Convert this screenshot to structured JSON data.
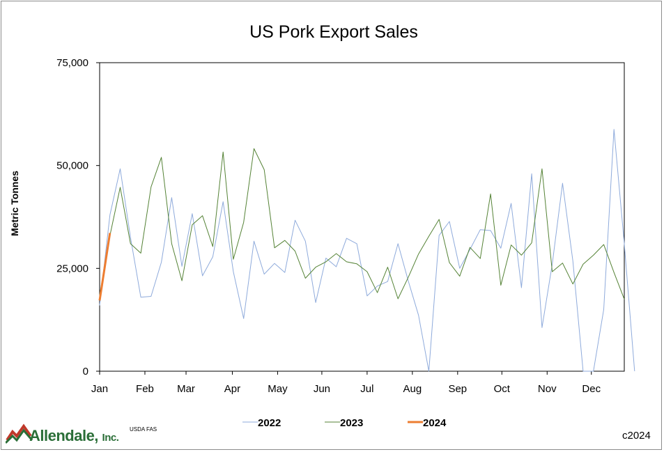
{
  "chart_data": {
    "type": "line",
    "title": "US Pork Export Sales",
    "ylabel": "Metric Tonnes",
    "xlabel": "",
    "ylim": [
      0,
      75000
    ],
    "y_ticks": [
      {
        "value": 0,
        "label": "0"
      },
      {
        "value": 25000,
        "label": "25,000"
      },
      {
        "value": 50000,
        "label": "50,000"
      },
      {
        "value": 75000,
        "label": "75,000"
      }
    ],
    "x_week_range": [
      1,
      52
    ],
    "x_ticks": [
      {
        "week": 1,
        "label": "Jan"
      },
      {
        "week": 5.4,
        "label": "Feb"
      },
      {
        "week": 9.4,
        "label": "Mar"
      },
      {
        "week": 13.9,
        "label": "Apr"
      },
      {
        "week": 18.3,
        "label": "May"
      },
      {
        "week": 22.6,
        "label": "Jun"
      },
      {
        "week": 27,
        "label": "Jul"
      },
      {
        "week": 31.4,
        "label": "Aug"
      },
      {
        "week": 35.8,
        "label": "Sep"
      },
      {
        "week": 40.1,
        "label": "Oct"
      },
      {
        "week": 44.5,
        "label": "Nov"
      },
      {
        "week": 48.8,
        "label": "Dec"
      }
    ],
    "grid": false,
    "legend_position": "bottom",
    "series": [
      {
        "name": "2022",
        "color": "#8eaadb",
        "width": 1,
        "values": [
          16000,
          38000,
          49200,
          32500,
          18000,
          18200,
          26500,
          42200,
          25500,
          38300,
          23200,
          27800,
          41200,
          24200,
          12800,
          31600,
          23600,
          26200,
          24000,
          36700,
          31600,
          16700,
          27500,
          25400,
          32300,
          31000,
          18300,
          20700,
          21800,
          31000,
          22000,
          13600,
          0,
          33000,
          36400,
          25000,
          29600,
          34400,
          34200,
          29900,
          40800,
          20300,
          48000,
          10600,
          26000,
          45700,
          26800,
          0,
          0,
          15000,
          58800,
          31000,
          0
        ]
      },
      {
        "name": "2023",
        "color": "#548235",
        "width": 1,
        "values": [
          18500,
          33000,
          44700,
          31000,
          28700,
          44800,
          52000,
          31000,
          22000,
          35600,
          37800,
          30300,
          53300,
          27200,
          36200,
          54100,
          49000,
          30000,
          31800,
          29200,
          22600,
          25300,
          26600,
          28600,
          26600,
          26100,
          24200,
          19100,
          25300,
          17600,
          22800,
          28500,
          32800,
          36900,
          26400,
          23100,
          30100,
          27400,
          43100,
          20900,
          30700,
          28200,
          31200,
          49200,
          24200,
          26300,
          21200,
          26000,
          28200,
          30800,
          24000,
          17500
        ]
      },
      {
        "name": "2024",
        "color": "#ed7d31",
        "width": 3,
        "values": [
          17200,
          33600
        ]
      }
    ]
  },
  "footer": {
    "logo_text": "Allendale,",
    "logo_suffix": "Inc.",
    "source": "USDA FAS",
    "copyright": "c2024"
  }
}
